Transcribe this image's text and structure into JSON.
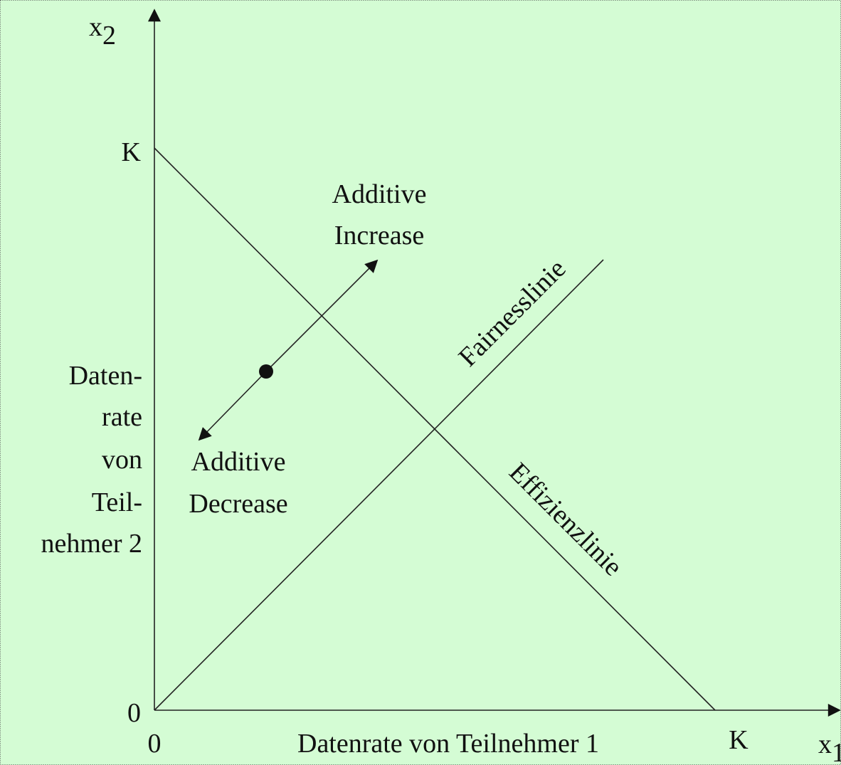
{
  "axes": {
    "y": {
      "name": "x",
      "subscript": "2",
      "ticks": [
        "0",
        "K"
      ],
      "label": [
        "Daten-",
        "rate",
        "von",
        "Teil-",
        "nehmer 2"
      ]
    },
    "x": {
      "name": "x",
      "subscript": "1",
      "ticks": [
        "0",
        "K"
      ],
      "label": "Datenrate von Teilnehmer 1"
    }
  },
  "lines": {
    "efficiency": "Effizienzlinie",
    "fairness": "Fairnesslinie"
  },
  "arrows": {
    "increase": [
      "Additive",
      "Increase"
    ],
    "decrease": [
      "Additive",
      "Decrease"
    ]
  }
}
